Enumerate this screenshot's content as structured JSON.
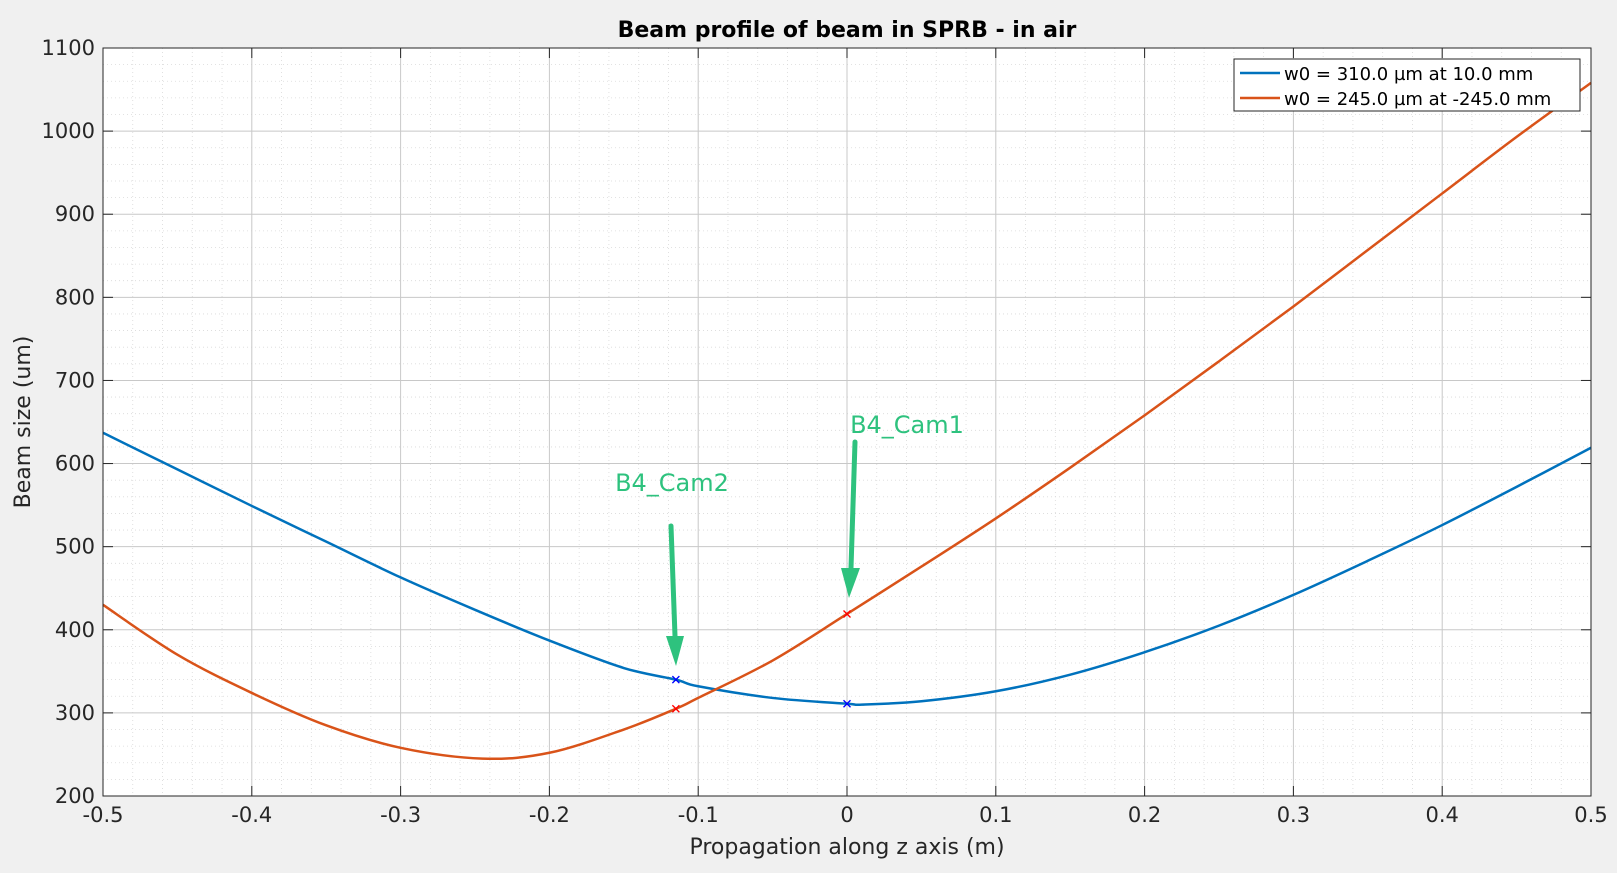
{
  "chart_data": {
    "type": "line",
    "title": "Beam profile of beam in SPRB - in air",
    "xlabel": "Propagation along z axis (m)",
    "ylabel": "Beam size (um)",
    "xlim": [
      -0.5,
      0.5
    ],
    "ylim": [
      200,
      1100
    ],
    "xticks": [
      -0.5,
      -0.4,
      -0.3,
      -0.2,
      -0.1,
      0,
      0.1,
      0.2,
      0.3,
      0.4,
      0.5
    ],
    "xtick_labels": [
      "-0.5",
      "-0.4",
      "-0.3",
      "-0.2",
      "-0.1",
      "0",
      "0.1",
      "0.2",
      "0.3",
      "0.4",
      "0.5"
    ],
    "yticks": [
      200,
      300,
      400,
      500,
      600,
      700,
      800,
      900,
      1000,
      1100
    ],
    "ytick_labels": [
      "200",
      "300",
      "400",
      "500",
      "600",
      "700",
      "800",
      "900",
      "1000",
      "1100"
    ],
    "grid": true,
    "minor_grid": true,
    "legend_position": "top-right",
    "series": [
      {
        "name": "w0 = 310.0 µm at 10.0 mm",
        "color": "#0072bd",
        "x": [
          -0.5,
          -0.45,
          -0.4,
          -0.35,
          -0.3,
          -0.25,
          -0.2,
          -0.15,
          -0.115,
          -0.1,
          -0.05,
          0,
          0.01,
          0.05,
          0.1,
          0.15,
          0.2,
          0.25,
          0.3,
          0.35,
          0.4,
          0.45,
          0.5
        ],
        "y": [
          637,
          593,
          549,
          506,
          463,
          424,
          387,
          354,
          340,
          332,
          318,
          311,
          310,
          314,
          326,
          346,
          373,
          405,
          442,
          483,
          526,
          572,
          619
        ]
      },
      {
        "name": "w0 = 245.0 µm at -245.0 mm",
        "color": "#d95319",
        "x": [
          -0.5,
          -0.45,
          -0.4,
          -0.35,
          -0.3,
          -0.245,
          -0.2,
          -0.15,
          -0.115,
          -0.1,
          -0.05,
          0,
          0.05,
          0.1,
          0.15,
          0.2,
          0.25,
          0.3,
          0.35,
          0.4,
          0.45,
          0.5
        ],
        "y": [
          430,
          370,
          324,
          285,
          258,
          245,
          252,
          280,
          305,
          318,
          363,
          419,
          476,
          534,
          595,
          658,
          723,
          789,
          857,
          925,
          993,
          1058
        ]
      }
    ],
    "markers": [
      {
        "x": -0.115,
        "y": 340,
        "color": "#0000ff",
        "symbol": "x"
      },
      {
        "x": 0,
        "y": 311,
        "color": "#0000ff",
        "symbol": "x"
      },
      {
        "x": -0.115,
        "y": 305,
        "color": "#ff0000",
        "symbol": "x"
      },
      {
        "x": 0,
        "y": 419,
        "color": "#ff0000",
        "symbol": "x"
      }
    ],
    "annotations": [
      {
        "text": "B4_Cam2",
        "color": "#2ec27e"
      },
      {
        "text": "B4_Cam1",
        "color": "#2ec27e"
      }
    ]
  }
}
